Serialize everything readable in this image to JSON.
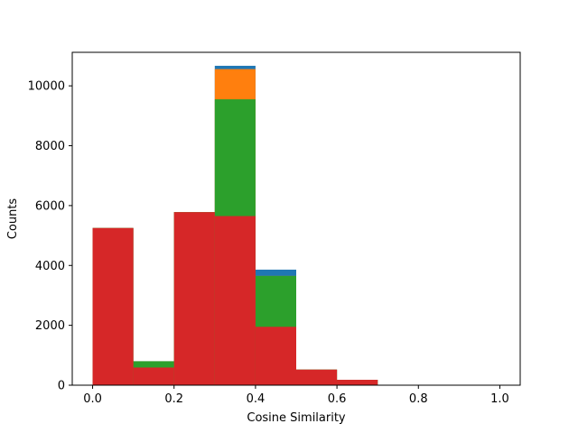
{
  "chart_data": {
    "type": "bar",
    "title": "",
    "xlabel": "Cosine Similarity",
    "ylabel": "Counts",
    "xlim": [
      -0.05,
      1.05
    ],
    "ylim": [
      0,
      11120
    ],
    "bin_edges": [
      0.0,
      0.1,
      0.2,
      0.3,
      0.4,
      0.5,
      0.6,
      0.7,
      0.8,
      0.9,
      1.0
    ],
    "grid": false,
    "legend": "none",
    "x_ticks": [
      0.0,
      0.2,
      0.4,
      0.6,
      0.8,
      1.0
    ],
    "x_tick_labels": [
      "0.0",
      "0.2",
      "0.4",
      "0.6",
      "0.8",
      "1.0"
    ],
    "y_ticks": [
      0,
      2000,
      4000,
      6000,
      8000,
      10000
    ],
    "y_tick_labels": [
      "0",
      "2000",
      "4000",
      "6000",
      "8000",
      "10000"
    ],
    "series": [
      {
        "color": "#1f77b4",
        "values": [
          5250,
          800,
          5780,
          10670,
          3860,
          520,
          180,
          0,
          0,
          0
        ]
      },
      {
        "color": "#ff7f0e",
        "values": [
          5250,
          800,
          5780,
          10560,
          3650,
          520,
          180,
          0,
          0,
          0
        ]
      },
      {
        "color": "#2ca02c",
        "values": [
          5250,
          800,
          5780,
          9550,
          3650,
          520,
          180,
          0,
          0,
          0
        ]
      },
      {
        "color": "#d62728",
        "values": [
          5250,
          590,
          5780,
          5650,
          1950,
          520,
          180,
          0,
          0,
          0
        ]
      }
    ]
  }
}
